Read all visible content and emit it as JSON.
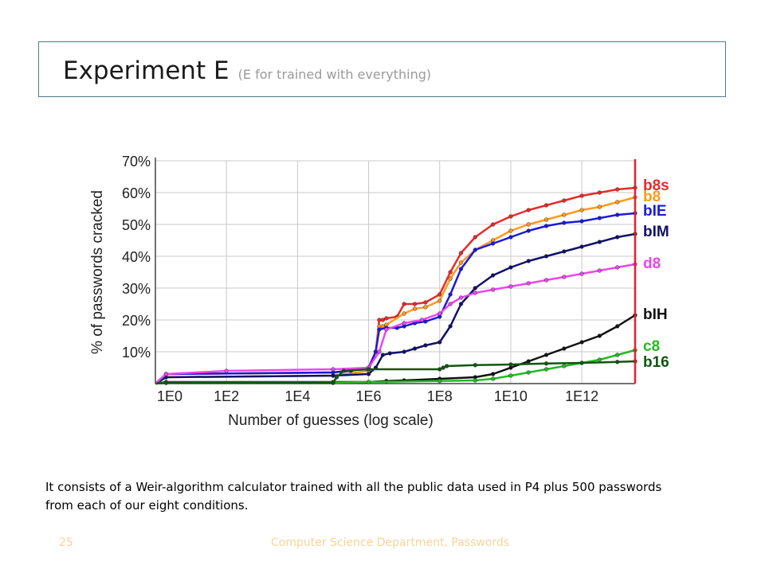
{
  "slide": {
    "title": "Experiment E",
    "subtitle": "(E for trained with everything)",
    "caption": "It consists of a Weir-algorithm calculator trained with all the public data used in P4 plus 500 passwords from each of our eight conditions.",
    "page_number": "25",
    "footer": "Computer Science Department, Passwords"
  },
  "chart_data": {
    "type": "line",
    "title": "",
    "xlabel": "Number of guesses (log scale)",
    "ylabel": "% of passwords cracked",
    "xscale": "log10",
    "xlim": [
      0,
      13.5
    ],
    "ylim": [
      0,
      70
    ],
    "x_ticks": [
      0,
      2,
      4,
      6,
      8,
      10,
      12
    ],
    "x_tick_labels": [
      "1E0",
      "1E2",
      "1E4",
      "1E6",
      "1E8",
      "1E10",
      "1E12"
    ],
    "y_ticks": [
      10,
      20,
      30,
      40,
      50,
      60,
      70
    ],
    "y_tick_labels": [
      "10%",
      "20%",
      "30%",
      "40%",
      "50%",
      "60%",
      "70%"
    ],
    "grid": true,
    "cutoff_line_x": 13.5,
    "cutoff_color": "#e8202a",
    "legend_placement": "right-of-plot",
    "series": [
      {
        "name": "b8s",
        "color": "#e82a2a",
        "label_pct": 62.5,
        "x": [
          0,
          0.3,
          5,
          6,
          6.2,
          6.3,
          6.4,
          6.5,
          6.8,
          7,
          7.3,
          7.6,
          8,
          8.3,
          8.6,
          9,
          9.5,
          10,
          10.5,
          11,
          11.5,
          12,
          12.5,
          13,
          13.5
        ],
        "y": [
          0,
          3,
          3.5,
          5,
          10,
          20,
          20,
          20.5,
          21,
          25,
          25,
          25.5,
          28,
          35,
          41,
          46,
          50,
          52.5,
          54.5,
          56,
          57.5,
          59,
          60,
          61,
          61.5
        ]
      },
      {
        "name": "b8",
        "color": "#ff9a1a",
        "label_pct": 59,
        "x": [
          0,
          0.3,
          5,
          6,
          6.2,
          6.3,
          6.4,
          6.5,
          7,
          7.3,
          7.6,
          8,
          8.3,
          8.6,
          9,
          9.5,
          10,
          10.5,
          11,
          11.5,
          12,
          12.5,
          13,
          13.5
        ],
        "y": [
          0,
          2,
          2.5,
          4,
          10,
          18,
          18,
          18.5,
          22,
          23.5,
          24,
          26,
          33,
          38,
          42,
          45,
          48,
          50,
          51.5,
          53,
          54.5,
          55.5,
          57,
          58.5
        ]
      },
      {
        "name": "bIE",
        "color": "#1a1ad6",
        "label_pct": 54.5,
        "x": [
          0,
          0.3,
          5,
          5.5,
          6,
          6.2,
          6.3,
          6.5,
          6.8,
          7,
          7.3,
          7.6,
          8,
          8.3,
          8.6,
          9,
          9.5,
          10,
          10.5,
          11,
          11.5,
          12,
          12.5,
          13,
          13.5
        ],
        "y": [
          0,
          3,
          3.5,
          4,
          5,
          10,
          17,
          17.5,
          17.5,
          18,
          19,
          19.5,
          21,
          28,
          36,
          42,
          44,
          46,
          48,
          49.5,
          50.5,
          51,
          52,
          53,
          53.5
        ]
      },
      {
        "name": "bIM",
        "color": "#10106a",
        "label_pct": 48,
        "x": [
          0,
          0.3,
          5,
          6,
          6.2,
          6.4,
          6.6,
          7,
          7.3,
          7.6,
          8,
          8.3,
          8.6,
          9,
          9.5,
          10,
          10.5,
          11,
          11.5,
          12,
          12.5,
          13,
          13.5
        ],
        "y": [
          0,
          2,
          2.5,
          3,
          5,
          9,
          9.5,
          10,
          11,
          12,
          13,
          18,
          25,
          30,
          34,
          36.5,
          38.5,
          40,
          41.5,
          43,
          44.5,
          46,
          47
        ]
      },
      {
        "name": "d8",
        "color": "#ee44ee",
        "label_pct": 38,
        "x": [
          0,
          0.3,
          2,
          5,
          6,
          6.3,
          6.5,
          7,
          7.5,
          8,
          8.3,
          8.6,
          9,
          9.5,
          10,
          10.5,
          11,
          11.5,
          12,
          12.5,
          13,
          13.5
        ],
        "y": [
          0,
          3,
          4,
          4.5,
          5,
          10,
          17,
          19,
          20,
          22,
          25,
          27,
          28.5,
          29.5,
          30.5,
          31.5,
          32.5,
          33.5,
          34.5,
          35.5,
          36.5,
          37.5
        ]
      },
      {
        "name": "bIH",
        "color": "#111111",
        "label_pct": 22,
        "x": [
          0,
          0.3,
          5,
          6,
          6.5,
          7,
          8,
          9,
          9.5,
          10,
          10.5,
          11,
          11.5,
          12,
          12.5,
          13,
          13.5
        ],
        "y": [
          0,
          0.5,
          0.5,
          0.5,
          0.8,
          1,
          1.5,
          2,
          3,
          5,
          7,
          9,
          11,
          13,
          15,
          18,
          21.5
        ]
      },
      {
        "name": "c8",
        "color": "#22bb22",
        "label_pct": 12,
        "x": [
          0,
          0.3,
          5,
          6,
          8,
          9,
          9.5,
          10,
          10.5,
          11,
          11.5,
          12,
          12.5,
          13,
          13.5
        ],
        "y": [
          0,
          0.3,
          0.3,
          0.5,
          0.8,
          1,
          1.5,
          2.5,
          3.5,
          4.5,
          5.5,
          6.5,
          7.5,
          9,
          10.5
        ]
      },
      {
        "name": "b16",
        "color": "#115511",
        "label_pct": 7,
        "x": [
          0,
          0.3,
          5,
          5.1,
          5.3,
          6,
          8,
          8.1,
          8.2,
          9,
          10,
          11,
          12,
          13,
          13.5
        ],
        "y": [
          0,
          0.2,
          0.2,
          2,
          4,
          4.5,
          4.5,
          5,
          5.5,
          5.8,
          6,
          6.3,
          6.5,
          6.8,
          7
        ]
      }
    ]
  }
}
